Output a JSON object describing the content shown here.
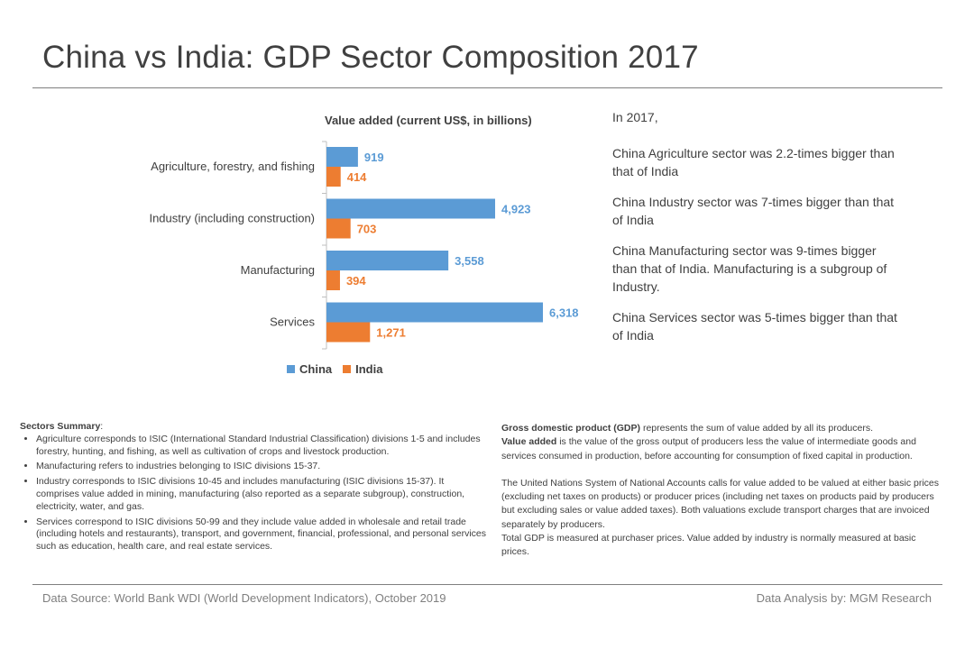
{
  "page": {
    "title": "China vs India: GDP Sector Composition 2017"
  },
  "chart_data": {
    "type": "bar",
    "orientation": "horizontal",
    "title": "Value added (current US$, in billions)",
    "categories": [
      "Agriculture, forestry, and fishing",
      "Industry (including construction)",
      "Manufacturing",
      "Services"
    ],
    "series": [
      {
        "name": "China",
        "values": [
          919,
          4923,
          3558,
          6318
        ],
        "labels": [
          "919",
          "4,923",
          "3,558",
          "6,318"
        ],
        "color": "#5b9bd5"
      },
      {
        "name": "India",
        "values": [
          414,
          703,
          394,
          1271
        ],
        "labels": [
          "414",
          "703",
          "394",
          "1,271"
        ],
        "color": "#ed7d31"
      }
    ],
    "xlim": [
      0,
      7000
    ],
    "xlabel": "",
    "ylabel": "",
    "grid": false,
    "legend_position": "bottom"
  },
  "notes": {
    "intro": "In 2017,",
    "items": [
      "China Agriculture sector was 2.2-times bigger than that of India",
      "China Industry sector was 7-times bigger than that of India",
      "China Manufacturing sector was 9-times bigger than that of India. Manufacturing is a subgroup of Industry.",
      "China Services sector was 5-times bigger than that of India"
    ]
  },
  "summary": {
    "heading": "Sectors Summary",
    "items": [
      "Agriculture corresponds to ISIC (International Standard Industrial Classification) divisions 1-5 and includes forestry, hunting, and fishing, as well as cultivation of crops and livestock production.",
      "Manufacturing refers to industries belonging to ISIC divisions 15-37.",
      "Industry corresponds to ISIC divisions 10-45 and includes manufacturing (ISIC divisions 15-37). It comprises value added in mining, manufacturing (also reported as a separate subgroup), construction, electricity, water, and gas.",
      "Services correspond to ISIC divisions 50-99 and they include value added in wholesale and retail trade (including hotels and restaurants), transport, and government, financial, professional, and personal services such as education, health care, and real estate services."
    ]
  },
  "gdp": {
    "gdp_term": "Gross domestic product (GDP)",
    "gdp_text": "represents the sum of value added by all its producers.",
    "va_term": "Value added",
    "va_text": "is the value of the gross output of producers less the value of intermediate goods and services consumed in production, before accounting for consumption of fixed capital in production.",
    "un_text": "The United Nations System of National Accounts calls for value added to be valued at either basic prices (excluding net taxes on products) or producer prices (including net taxes on products paid by producers but excluding sales or value added taxes). Both valuations exclude transport charges that are invoiced separately by producers.",
    "total_text": "Total GDP is measured at purchaser prices. Value added by industry is normally measured at basic prices."
  },
  "footer": {
    "source": "Data Source: World Bank WDI (World Development Indicators), October 2019",
    "analysis": "Data Analysis by: MGM Research"
  }
}
